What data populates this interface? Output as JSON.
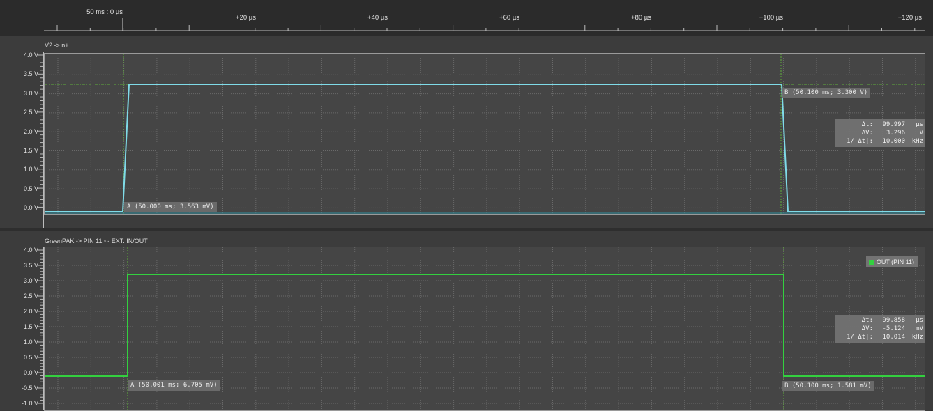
{
  "timeline": {
    "origin_label": "50 ms : 0 µs",
    "ticks": [
      "+20 µs",
      "+40 µs",
      "+60 µs",
      "+80 µs",
      "+100 µs",
      "+120 µs"
    ]
  },
  "panels": [
    {
      "title": "V2 -> n+",
      "y_labels": [
        "4.0 V",
        "3.5 V",
        "3.0 V",
        "2.5 V",
        "2.0 V",
        "1.5 V",
        "1.0 V",
        "0.5 V",
        "0.0 V"
      ],
      "trace_color": "#7fdbe8",
      "cursor_a": "A (50.000 ms; 3.563 mV)",
      "cursor_b": "B (50.100 ms; 3.300 V)",
      "measure": {
        "dt_key": "Δt:",
        "dt_val": "99.997",
        "dt_unit": "µs",
        "dv_key": "ΔV:",
        "dv_val": "3.296",
        "dv_unit": "V",
        "f_key": "1/|Δt|:",
        "f_val": "10.000",
        "f_unit": "kHz"
      }
    },
    {
      "title": "GreenPAK -> PIN 11 <- EXT. IN/OUT",
      "y_labels": [
        "4.0 V",
        "3.5 V",
        "3.0 V",
        "2.5 V",
        "2.0 V",
        "1.5 V",
        "1.0 V",
        "0.5 V",
        "0.0 V",
        "-0.5 V",
        "-1.0 V"
      ],
      "trace_color": "#33d03f",
      "legend": "OUT (PIN 11)",
      "cursor_a": "A (50.001 ms; 6.705 mV)",
      "cursor_b": "B (50.100 ms; 1.581 mV)",
      "measure": {
        "dt_key": "Δt:",
        "dt_val": "99.858",
        "dt_unit": "µs",
        "dv_key": "ΔV:",
        "dv_val": "-5.124",
        "dv_unit": "mV",
        "f_key": "1/|Δt|:",
        "f_val": "10.014",
        "f_unit": "kHz"
      }
    }
  ]
}
